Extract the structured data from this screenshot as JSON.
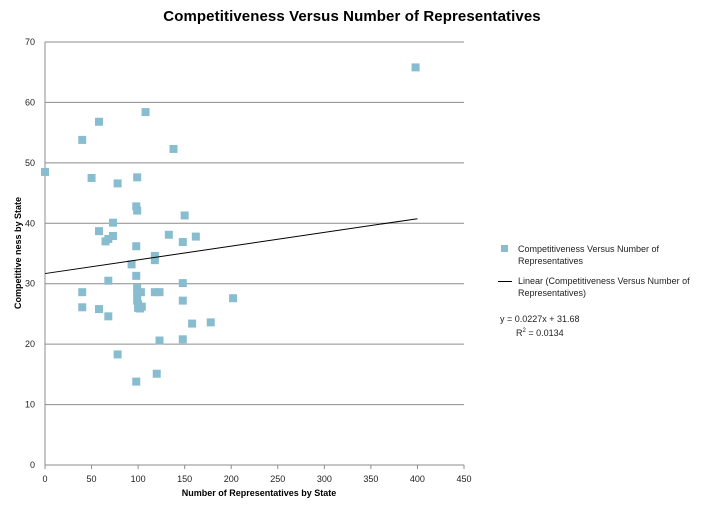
{
  "chart_data": {
    "type": "scatter",
    "title": "Competitiveness Versus Number of Representatives",
    "xlabel": "Number  of  Representatives  by State",
    "ylabel": "Competitive ness   by State",
    "xlim": [
      0,
      450
    ],
    "ylim": [
      0,
      70
    ],
    "xticks": [
      "0",
      "50",
      "100",
      "150",
      "200",
      "250",
      "300",
      "350",
      "400",
      "450"
    ],
    "yticks": [
      "0",
      "10",
      "20",
      "30",
      "40",
      "50",
      "60",
      "70"
    ],
    "grid": "horizontal",
    "legend_position": "right",
    "series": [
      {
        "name": "Competitiveness Versus Number of Representatives",
        "color": "#88bdd0",
        "points": [
          [
            0,
            48.5
          ],
          [
            40,
            53.8
          ],
          [
            50,
            47.5
          ],
          [
            58,
            56.8
          ],
          [
            40,
            28.6
          ],
          [
            40,
            26.1
          ],
          [
            58,
            38.7
          ],
          [
            58,
            25.8
          ],
          [
            65,
            37.0
          ],
          [
            68,
            37.4
          ],
          [
            68,
            30.5
          ],
          [
            68,
            24.6
          ],
          [
            73,
            40.1
          ],
          [
            73,
            37.9
          ],
          [
            78,
            46.6
          ],
          [
            78,
            18.3
          ],
          [
            93,
            33.2
          ],
          [
            98,
            42.8
          ],
          [
            98,
            36.2
          ],
          [
            98,
            31.3
          ],
          [
            99,
            47.6
          ],
          [
            99,
            42.1
          ],
          [
            99,
            29.3
          ],
          [
            99,
            28.3
          ],
          [
            99,
            27.2
          ],
          [
            100,
            26.6
          ],
          [
            100,
            26.0
          ],
          [
            102,
            25.9
          ],
          [
            103,
            28.6
          ],
          [
            104,
            26.2
          ],
          [
            108,
            58.4
          ],
          [
            98,
            13.8
          ],
          [
            118,
            34.6
          ],
          [
            118,
            33.9
          ],
          [
            118,
            28.6
          ],
          [
            123,
            28.6
          ],
          [
            123,
            20.6
          ],
          [
            120,
            15.1
          ],
          [
            133,
            38.1
          ],
          [
            138,
            52.3
          ],
          [
            148,
            36.9
          ],
          [
            150,
            41.3
          ],
          [
            148,
            30.1
          ],
          [
            148,
            27.2
          ],
          [
            148,
            20.8
          ],
          [
            158,
            23.4
          ],
          [
            162,
            37.8
          ],
          [
            178,
            23.6
          ],
          [
            202,
            27.6
          ],
          [
            398,
            65.8
          ]
        ]
      }
    ],
    "trendline": {
      "name": "Linear (Competitiveness Versus Number of Representatives)",
      "color": "#000000",
      "slope": 0.0227,
      "intercept": 31.68,
      "x_range": [
        0,
        400
      ],
      "equation": "y = 0.0227x + 31.68",
      "r2_label": "R",
      "r2_exponent": "2",
      "r2_value": " = 0.0134"
    }
  }
}
